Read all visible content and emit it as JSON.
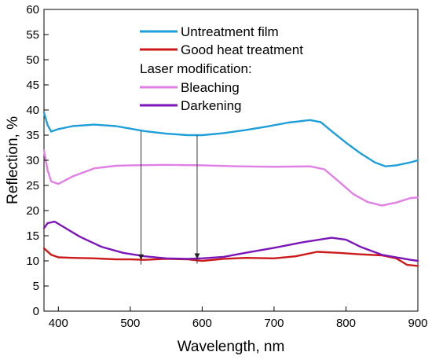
{
  "chart_data": {
    "type": "line",
    "xlabel": "Wavelength, nm",
    "ylabel": "Reflection, %",
    "xlim": [
      380,
      900
    ],
    "ylim": [
      0,
      60
    ],
    "xticks": [
      400,
      500,
      600,
      700,
      800,
      900
    ],
    "yticks": [
      0,
      5,
      10,
      15,
      20,
      25,
      30,
      35,
      40,
      45,
      50,
      55,
      60
    ],
    "grid": false,
    "legend_position": "top-center",
    "legend_subheading": "Laser modification:",
    "series": [
      {
        "name": "Untreatment film",
        "color": "#1f9fd9",
        "x": [
          380,
          385,
          390,
          400,
          420,
          450,
          480,
          500,
          520,
          550,
          580,
          600,
          630,
          660,
          690,
          720,
          750,
          765,
          780,
          800,
          820,
          840,
          855,
          870,
          890,
          900
        ],
        "y": [
          39.5,
          37.0,
          35.7,
          36.2,
          36.8,
          37.1,
          36.8,
          36.3,
          35.8,
          35.3,
          35.0,
          35.0,
          35.4,
          36.0,
          36.7,
          37.5,
          38.0,
          37.6,
          35.8,
          33.5,
          31.4,
          29.6,
          28.8,
          29.0,
          29.6,
          30.0
        ]
      },
      {
        "name": "Good heat treatment",
        "color": "#cc1a1a",
        "x": [
          380,
          390,
          400,
          420,
          450,
          480,
          500,
          520,
          550,
          580,
          600,
          630,
          660,
          700,
          730,
          760,
          790,
          820,
          850,
          870,
          885,
          900
        ],
        "y": [
          12.5,
          11.2,
          10.7,
          10.6,
          10.5,
          10.3,
          10.3,
          10.2,
          10.4,
          10.3,
          10.0,
          10.4,
          10.6,
          10.5,
          10.9,
          11.8,
          11.6,
          11.3,
          11.1,
          10.5,
          9.2,
          9.0
        ]
      },
      {
        "name": "Bleaching",
        "color": "#e07fe6",
        "x": [
          380,
          385,
          390,
          400,
          420,
          450,
          480,
          500,
          550,
          600,
          650,
          700,
          750,
          770,
          790,
          810,
          830,
          850,
          870,
          890,
          900
        ],
        "y": [
          32.0,
          28.0,
          25.8,
          25.3,
          26.8,
          28.4,
          28.9,
          29.0,
          29.1,
          29.0,
          28.8,
          28.7,
          28.8,
          28.2,
          25.8,
          23.3,
          21.7,
          21.0,
          21.6,
          22.5,
          22.6
        ]
      },
      {
        "name": "Darkening",
        "color": "#7b17b8",
        "x": [
          380,
          385,
          395,
          410,
          430,
          460,
          490,
          520,
          550,
          580,
          600,
          630,
          660,
          700,
          740,
          780,
          800,
          820,
          850,
          870,
          890,
          900
        ],
        "y": [
          16.5,
          17.5,
          17.8,
          16.5,
          14.8,
          12.8,
          11.6,
          10.9,
          10.5,
          10.4,
          10.5,
          10.8,
          11.6,
          12.6,
          13.7,
          14.6,
          14.2,
          12.8,
          11.2,
          10.7,
          10.2,
          10.0
        ]
      }
    ],
    "annotations": [
      {
        "type": "arrow",
        "x": 515,
        "y_from": 35.8,
        "y_to": 10.2
      },
      {
        "type": "arrow",
        "x": 593,
        "y_from": 35.0,
        "y_to": 10.4
      }
    ]
  }
}
